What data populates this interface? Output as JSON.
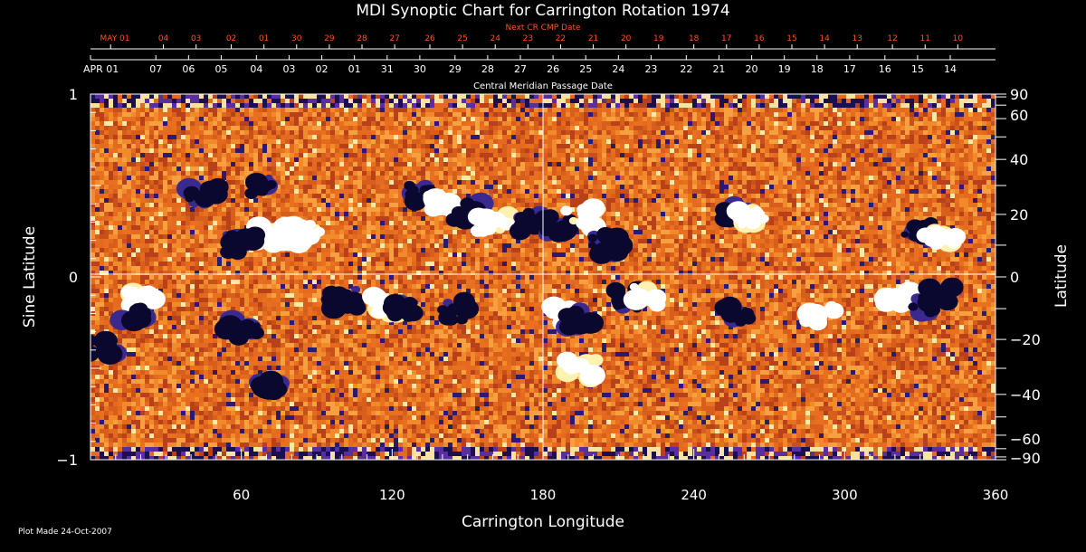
{
  "chart_data": {
    "type": "heatmap",
    "title": "MDI Synoptic Chart for Carrington Rotation 1974",
    "xlabel": "Carrington Longitude",
    "ylabel_left": "Sine Latitude",
    "ylabel_right": "Latitude",
    "xlim": [
      0,
      360
    ],
    "ylim": [
      -1,
      1
    ],
    "x_ticks": [
      60,
      120,
      180,
      240,
      300,
      360
    ],
    "y_ticks_left": [
      {
        "value": 1,
        "label": "1"
      },
      {
        "value": 0,
        "label": "0"
      },
      {
        "value": -1,
        "label": "−1"
      }
    ],
    "y_ticks_right": [
      {
        "deg": 90,
        "label": "90"
      },
      {
        "deg": 60,
        "label": "60"
      },
      {
        "deg": 40,
        "label": "40"
      },
      {
        "deg": 20,
        "label": "20"
      },
      {
        "deg": 0,
        "label": "0"
      },
      {
        "deg": -20,
        "label": "−20"
      },
      {
        "deg": -40,
        "label": "−40"
      },
      {
        "deg": -60,
        "label": "−60"
      },
      {
        "deg": -90,
        "label": "−90"
      }
    ],
    "cmp_axis": {
      "label": "Central Meridian Passage Date",
      "dates": [
        {
          "label": "APR 01",
          "lon": 0
        },
        {
          "label": "07",
          "lon": 26
        },
        {
          "label": "06",
          "lon": 39
        },
        {
          "label": "05",
          "lon": 52
        },
        {
          "label": "04",
          "lon": 66
        },
        {
          "label": "03",
          "lon": 79
        },
        {
          "label": "02",
          "lon": 92
        },
        {
          "label": "01",
          "lon": 105
        },
        {
          "label": "31",
          "lon": 118
        },
        {
          "label": "30",
          "lon": 131
        },
        {
          "label": "29",
          "lon": 145
        },
        {
          "label": "28",
          "lon": 158
        },
        {
          "label": "27",
          "lon": 171
        },
        {
          "label": "26",
          "lon": 184
        },
        {
          "label": "25",
          "lon": 197
        },
        {
          "label": "24",
          "lon": 210
        },
        {
          "label": "23",
          "lon": 223
        },
        {
          "label": "22",
          "lon": 237
        },
        {
          "label": "21",
          "lon": 250
        },
        {
          "label": "20",
          "lon": 263
        },
        {
          "label": "19",
          "lon": 276
        },
        {
          "label": "18",
          "lon": 289
        },
        {
          "label": "17",
          "lon": 302
        },
        {
          "label": "16",
          "lon": 316
        },
        {
          "label": "15",
          "lon": 329
        },
        {
          "label": "14",
          "lon": 342
        }
      ]
    },
    "next_cmp_axis": {
      "label": "Next CR CMP Date",
      "dates": [
        {
          "label": "MAY 01",
          "lon": 8
        },
        {
          "label": "04",
          "lon": 29
        },
        {
          "label": "03",
          "lon": 42
        },
        {
          "label": "02",
          "lon": 56
        },
        {
          "label": "01",
          "lon": 69
        },
        {
          "label": "30",
          "lon": 82
        },
        {
          "label": "29",
          "lon": 95
        },
        {
          "label": "28",
          "lon": 108
        },
        {
          "label": "27",
          "lon": 121
        },
        {
          "label": "26",
          "lon": 135
        },
        {
          "label": "25",
          "lon": 148
        },
        {
          "label": "24",
          "lon": 161
        },
        {
          "label": "23",
          "lon": 174
        },
        {
          "label": "22",
          "lon": 187
        },
        {
          "label": "21",
          "lon": 200
        },
        {
          "label": "20",
          "lon": 213
        },
        {
          "label": "19",
          "lon": 226
        },
        {
          "label": "18",
          "lon": 240
        },
        {
          "label": "17",
          "lon": 253
        },
        {
          "label": "16",
          "lon": 266
        },
        {
          "label": "15",
          "lon": 279
        },
        {
          "label": "14",
          "lon": 292
        },
        {
          "label": "13",
          "lon": 305
        },
        {
          "label": "12",
          "lon": 319
        },
        {
          "label": "11",
          "lon": 332
        },
        {
          "label": "10",
          "lon": 345
        }
      ]
    },
    "colors": {
      "background": "#000000",
      "text": "#ffffff",
      "next_axis": "#ff5020",
      "field_base": "#e2661c",
      "positive": "#ffffff",
      "negative": "#0b0830"
    },
    "magnetic_regions": [
      {
        "lon": 45,
        "lat": 0.45,
        "polarity": "negative"
      },
      {
        "lon": 68,
        "lat": 0.5,
        "polarity": "negative"
      },
      {
        "lon": 72,
        "lat": 0.22,
        "polarity": "positive"
      },
      {
        "lon": 60,
        "lat": 0.18,
        "polarity": "negative"
      },
      {
        "lon": 85,
        "lat": 0.24,
        "polarity": "positive"
      },
      {
        "lon": 130,
        "lat": 0.45,
        "polarity": "negative"
      },
      {
        "lon": 140,
        "lat": 0.4,
        "polarity": "positive"
      },
      {
        "lon": 150,
        "lat": 0.35,
        "polarity": "negative"
      },
      {
        "lon": 160,
        "lat": 0.3,
        "polarity": "positive"
      },
      {
        "lon": 175,
        "lat": 0.3,
        "polarity": "negative"
      },
      {
        "lon": 185,
        "lat": 0.28,
        "polarity": "negative"
      },
      {
        "lon": 195,
        "lat": 0.32,
        "polarity": "positive"
      },
      {
        "lon": 205,
        "lat": 0.18,
        "polarity": "negative"
      },
      {
        "lon": 255,
        "lat": 0.35,
        "polarity": "negative"
      },
      {
        "lon": 262,
        "lat": 0.33,
        "polarity": "positive"
      },
      {
        "lon": 330,
        "lat": 0.25,
        "polarity": "negative"
      },
      {
        "lon": 338,
        "lat": 0.22,
        "polarity": "positive"
      },
      {
        "lon": 20,
        "lat": -0.12,
        "polarity": "positive"
      },
      {
        "lon": 18,
        "lat": -0.2,
        "polarity": "negative"
      },
      {
        "lon": 4,
        "lat": -0.4,
        "polarity": "negative"
      },
      {
        "lon": 60,
        "lat": -0.28,
        "polarity": "negative"
      },
      {
        "lon": 100,
        "lat": -0.12,
        "polarity": "negative"
      },
      {
        "lon": 118,
        "lat": -0.15,
        "polarity": "positive"
      },
      {
        "lon": 125,
        "lat": -0.18,
        "polarity": "negative"
      },
      {
        "lon": 145,
        "lat": -0.18,
        "polarity": "negative"
      },
      {
        "lon": 190,
        "lat": -0.2,
        "polarity": "positive"
      },
      {
        "lon": 195,
        "lat": -0.22,
        "polarity": "negative"
      },
      {
        "lon": 215,
        "lat": -0.12,
        "polarity": "negative"
      },
      {
        "lon": 222,
        "lat": -0.1,
        "polarity": "positive"
      },
      {
        "lon": 256,
        "lat": -0.2,
        "polarity": "negative"
      },
      {
        "lon": 290,
        "lat": -0.2,
        "polarity": "positive"
      },
      {
        "lon": 320,
        "lat": -0.12,
        "polarity": "positive"
      },
      {
        "lon": 333,
        "lat": -0.15,
        "polarity": "negative"
      },
      {
        "lon": 338,
        "lat": -0.1,
        "polarity": "negative"
      },
      {
        "lon": 195,
        "lat": -0.5,
        "polarity": "positive"
      },
      {
        "lon": 70,
        "lat": -0.62,
        "polarity": "negative"
      }
    ]
  },
  "footer": {
    "plot_made": "Plot Made 24-Oct-2007"
  }
}
